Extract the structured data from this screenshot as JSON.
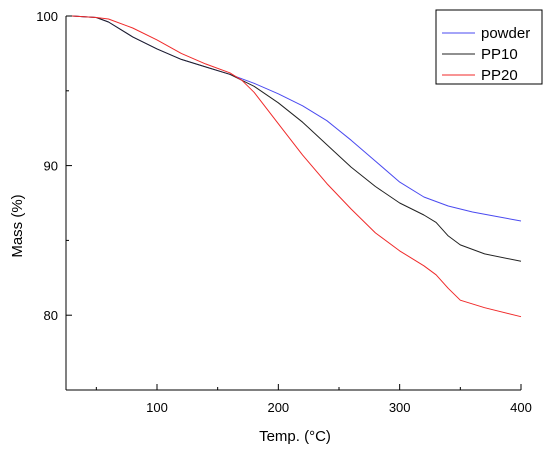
{
  "chart_data": {
    "type": "line",
    "title": "",
    "xlabel": "Temp. (°C)",
    "ylabel": "Mass (%)",
    "xlim": [
      25,
      400
    ],
    "ylim": [
      75,
      100
    ],
    "x_ticks": [
      100,
      200,
      300,
      400
    ],
    "y_ticks": [
      80,
      90,
      100
    ],
    "grid": false,
    "legend_position": "top-right",
    "series": [
      {
        "name": "powder",
        "color": "#4a4af0",
        "points": [
          [
            30,
            100
          ],
          [
            50,
            99.9
          ],
          [
            60,
            99.6
          ],
          [
            80,
            98.6
          ],
          [
            100,
            97.8
          ],
          [
            120,
            97.1
          ],
          [
            140,
            96.6
          ],
          [
            160,
            96.1
          ],
          [
            180,
            95.5
          ],
          [
            200,
            94.8
          ],
          [
            220,
            94.0
          ],
          [
            240,
            93.0
          ],
          [
            260,
            91.7
          ],
          [
            280,
            90.3
          ],
          [
            300,
            88.9
          ],
          [
            320,
            87.9
          ],
          [
            340,
            87.3
          ],
          [
            360,
            86.9
          ],
          [
            380,
            86.6
          ],
          [
            400,
            86.3
          ]
        ]
      },
      {
        "name": "PP10",
        "color": "#222222",
        "points": [
          [
            30,
            100
          ],
          [
            50,
            99.9
          ],
          [
            60,
            99.6
          ],
          [
            80,
            98.6
          ],
          [
            100,
            97.8
          ],
          [
            120,
            97.1
          ],
          [
            140,
            96.6
          ],
          [
            160,
            96.1
          ],
          [
            180,
            95.3
          ],
          [
            200,
            94.2
          ],
          [
            220,
            92.9
          ],
          [
            240,
            91.4
          ],
          [
            260,
            89.9
          ],
          [
            280,
            88.6
          ],
          [
            300,
            87.5
          ],
          [
            320,
            86.7
          ],
          [
            330,
            86.2
          ],
          [
            340,
            85.3
          ],
          [
            350,
            84.7
          ],
          [
            370,
            84.1
          ],
          [
            400,
            83.6
          ]
        ]
      },
      {
        "name": "PP20",
        "color": "#f02a2a",
        "points": [
          [
            30,
            100
          ],
          [
            50,
            99.9
          ],
          [
            60,
            99.8
          ],
          [
            80,
            99.2
          ],
          [
            100,
            98.4
          ],
          [
            120,
            97.5
          ],
          [
            140,
            96.8
          ],
          [
            160,
            96.2
          ],
          [
            170,
            95.7
          ],
          [
            180,
            94.9
          ],
          [
            200,
            92.8
          ],
          [
            220,
            90.7
          ],
          [
            240,
            88.8
          ],
          [
            260,
            87.1
          ],
          [
            280,
            85.5
          ],
          [
            300,
            84.3
          ],
          [
            320,
            83.3
          ],
          [
            330,
            82.7
          ],
          [
            340,
            81.8
          ],
          [
            350,
            81.0
          ],
          [
            370,
            80.5
          ],
          [
            400,
            79.9
          ]
        ]
      }
    ]
  }
}
